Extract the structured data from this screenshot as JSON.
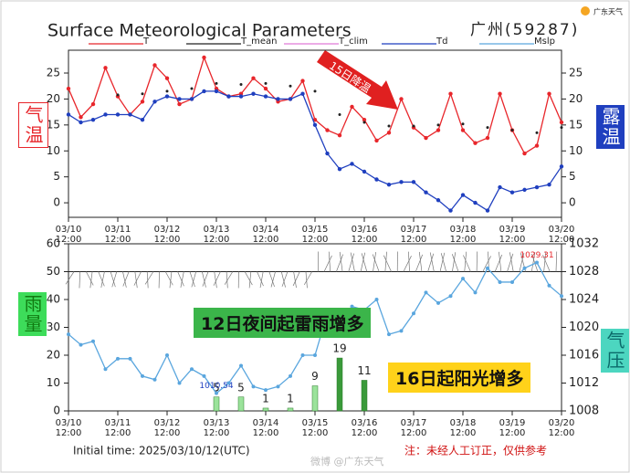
{
  "header": {
    "title": "Surface Meteorological Parameters",
    "station": "广州(59287)",
    "logo": "广东天气"
  },
  "side_labels": {
    "temp": "气温",
    "dew": "露温",
    "rain": "雨量",
    "pressure": "气压"
  },
  "annotations": {
    "cooling": "15日降温",
    "storms": "12日夜间起雷雨增多",
    "sunny": "16日起阳光增多"
  },
  "footer": {
    "init": "Initial time: 2025/03/10/12(UTC)",
    "note": "注：未经人工订正，仅供参考",
    "watermark": "微博 @广东天气"
  },
  "chart_data": [
    {
      "type": "line",
      "categories": [
        "03/10\n12:00",
        null,
        null,
        null,
        "03/11\n12:00",
        null,
        null,
        null,
        "03/12\n12:00",
        null,
        null,
        null,
        "03/13\n12:00",
        null,
        null,
        null,
        "03/14\n12:00",
        null,
        null,
        null,
        "03/15\n12:00",
        null,
        null,
        null,
        "03/16\n12:00",
        null,
        null,
        null,
        "03/17\n12:00",
        null,
        null,
        null,
        "03/18\n12:00",
        null,
        null,
        null,
        "03/19\n12:00",
        null,
        null,
        null,
        "03/20\n12:00"
      ],
      "ylim": [
        -2.8,
        29.4
      ],
      "yticks": [
        0,
        5,
        10,
        15,
        20,
        25
      ],
      "y2lim": [
        -2.8,
        29.4
      ],
      "y2ticks": [
        0,
        5,
        10,
        15,
        20,
        25
      ],
      "series": [
        {
          "name": "T",
          "color": "#e8262b",
          "values": [
            22,
            16.5,
            19,
            26,
            20.5,
            17,
            19.5,
            26.5,
            24,
            19,
            20,
            28,
            22,
            20.5,
            21,
            24,
            22,
            19.5,
            20,
            23.5,
            16,
            14,
            13,
            18.5,
            16,
            12,
            13.5,
            20,
            14.5,
            12.5,
            14,
            21,
            14,
            11.5,
            12.5,
            21,
            14,
            9.5,
            11,
            21,
            15.5
          ]
        },
        {
          "name": "T_mean",
          "color": "#222222",
          "values": [
            null,
            null,
            null,
            null,
            20.8,
            null,
            21,
            null,
            21.5,
            null,
            22,
            null,
            23,
            null,
            22.8,
            null,
            23,
            null,
            22.5,
            null,
            21.5,
            null,
            17,
            null,
            15.5,
            null,
            14.8,
            null,
            14.8,
            null,
            15,
            null,
            15.2,
            null,
            14.5,
            null,
            14,
            null,
            13.5,
            null,
            14.5
          ]
        },
        {
          "name": "T_clim",
          "color": "#e07ad6",
          "values": [
            null,
            null,
            null,
            null,
            null,
            null,
            null,
            null,
            null,
            null,
            null,
            null,
            null,
            null,
            null,
            null,
            null,
            null,
            null,
            null,
            null,
            null,
            null,
            null,
            null,
            null,
            null,
            null,
            null,
            null,
            null,
            null,
            null,
            null,
            null,
            null,
            null,
            null,
            null,
            null,
            null
          ]
        },
        {
          "name": "Td",
          "color": "#1f3fbf",
          "axis": "y2",
          "values": [
            17,
            15.5,
            16,
            17,
            17,
            17,
            16,
            19.5,
            20.5,
            20,
            20,
            21.5,
            21.5,
            20.5,
            20.5,
            21,
            20.5,
            20,
            20,
            21,
            15,
            9.5,
            6.5,
            7.5,
            6,
            4.5,
            3.5,
            4,
            4,
            2,
            0.5,
            -1.5,
            1.5,
            0,
            -1.5,
            3,
            2,
            2.5,
            3,
            3.5,
            7
          ]
        }
      ]
    },
    {
      "type": "bar",
      "categories": [
        "03/10\n12:00",
        null,
        null,
        null,
        "03/11\n12:00",
        null,
        null,
        null,
        "03/12\n12:00",
        null,
        null,
        null,
        "03/13\n12:00",
        null,
        null,
        null,
        "03/14\n12:00",
        null,
        null,
        null,
        "03/15\n12:00",
        null,
        null,
        null,
        "03/16\n12:00",
        null,
        null,
        null,
        "03/17\n12:00",
        null,
        null,
        null,
        "03/18\n12:00",
        null,
        null,
        null,
        "03/19\n12:00",
        null,
        null,
        null,
        "03/20\n12:00"
      ],
      "ylim": [
        0,
        60
      ],
      "yticks": [
        0,
        10,
        20,
        30,
        40,
        50,
        60
      ],
      "y2lim": [
        1008,
        1032
      ],
      "y2ticks": [
        1008,
        1012,
        1016,
        1020,
        1024,
        1028,
        1032
      ],
      "series": [
        {
          "name": "rain",
          "colors": [
            null,
            null,
            null,
            null,
            null,
            null,
            null,
            null,
            null,
            null,
            null,
            null,
            "#9be39b",
            null,
            "#9be39b",
            null,
            "#9be39b",
            null,
            "#9be39b",
            null,
            "#9be39b",
            null,
            "#3a9a3a",
            null,
            "#3a9a3a",
            null,
            null,
            null,
            null,
            null,
            null,
            null,
            null,
            null,
            null,
            null,
            null,
            null,
            null,
            null,
            null
          ],
          "values": [
            null,
            null,
            null,
            null,
            null,
            null,
            null,
            null,
            null,
            null,
            null,
            null,
            5,
            null,
            5,
            null,
            1,
            null,
            1,
            null,
            9,
            null,
            19,
            null,
            11,
            null,
            null,
            null,
            null,
            null,
            null,
            null,
            null,
            null,
            null,
            null,
            null,
            null,
            null,
            null,
            null
          ]
        },
        {
          "name": "Mslp",
          "color": "#5aa6de",
          "axis": "y2",
          "type": "line",
          "values": [
            1019,
            1017.5,
            1018,
            1014,
            1015.5,
            1015.5,
            1013,
            1012.5,
            1016,
            1012,
            1014,
            1013,
            1010.54,
            1012,
            1014.5,
            1011.5,
            1011,
            1011.5,
            1013,
            1016,
            1016,
            1022,
            1020,
            1023,
            1022.5,
            1024,
            1019,
            1019.5,
            1022,
            1025,
            1023.5,
            1024.5,
            1027,
            1025,
            1028.5,
            1026.5,
            1026.5,
            1028.5,
            1029.31,
            1026,
            1024.5
          ],
          "value_labels": [
            null,
            null,
            null,
            null,
            null,
            null,
            null,
            null,
            null,
            null,
            null,
            null,
            "1010.54",
            null,
            null,
            null,
            null,
            null,
            null,
            null,
            null,
            null,
            null,
            null,
            null,
            null,
            null,
            null,
            null,
            null,
            null,
            null,
            null,
            null,
            null,
            null,
            null,
            null,
            "1029.31",
            null,
            null
          ]
        }
      ]
    }
  ]
}
